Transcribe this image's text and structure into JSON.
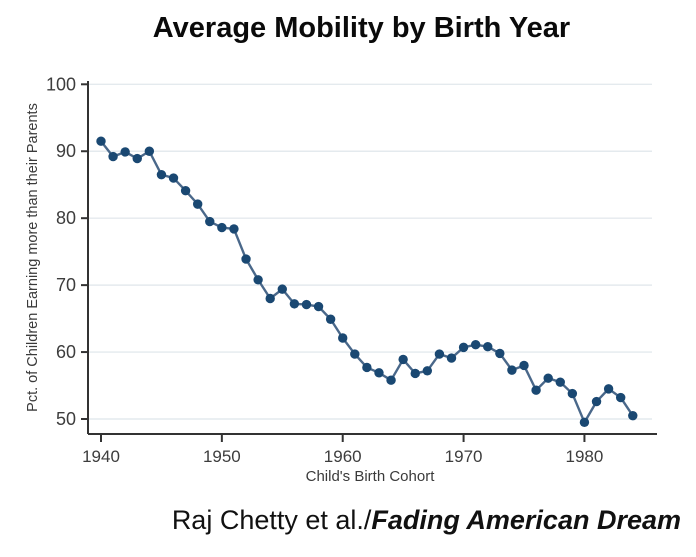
{
  "page": {
    "background": "#ffffff"
  },
  "caption": {
    "author": "Raj Chetty et al./",
    "work": "Fading American Dream"
  },
  "chart_data": {
    "type": "line",
    "title": "Average Mobility by Birth Year",
    "xlabel": "Child's Birth Cohort",
    "ylabel": "Pct. of Children Earning more than their Parents",
    "x": [
      1940,
      1941,
      1942,
      1943,
      1944,
      1945,
      1946,
      1947,
      1948,
      1949,
      1950,
      1951,
      1952,
      1953,
      1954,
      1955,
      1956,
      1957,
      1958,
      1959,
      1960,
      1961,
      1962,
      1963,
      1964,
      1965,
      1966,
      1967,
      1968,
      1969,
      1970,
      1971,
      1972,
      1973,
      1974,
      1975,
      1976,
      1977,
      1978,
      1979,
      1980,
      1981,
      1982,
      1983,
      1984
    ],
    "values": [
      91.5,
      89.2,
      89.9,
      88.9,
      90.0,
      86.5,
      86.0,
      84.1,
      82.1,
      79.5,
      78.6,
      78.4,
      73.9,
      70.8,
      68.0,
      69.4,
      67.2,
      67.1,
      66.8,
      64.9,
      62.1,
      59.7,
      57.7,
      56.9,
      55.8,
      58.9,
      56.8,
      57.2,
      59.7,
      59.1,
      60.7,
      61.1,
      60.8,
      59.8,
      57.3,
      58.0,
      54.3,
      56.1,
      55.5,
      53.8,
      49.5,
      52.6,
      54.5,
      53.2,
      50.5
    ],
    "x_ticks": [
      1940,
      1950,
      1960,
      1970,
      1980
    ],
    "y_ticks": [
      50,
      60,
      70,
      80,
      90,
      100
    ],
    "xlim": [
      1938.9,
      1986.0
    ],
    "ylim": [
      47.8,
      100.5
    ],
    "grid": "horizontal",
    "legend": "none",
    "marker": "circle",
    "colors": {
      "point": "#1a4872",
      "line": "#4a688a",
      "grid": "#e4eaee",
      "axis": "#333333",
      "tick_text": "#3d3d3d",
      "axis_label": "#3a3a3a",
      "title": "#0a0a0a"
    }
  }
}
